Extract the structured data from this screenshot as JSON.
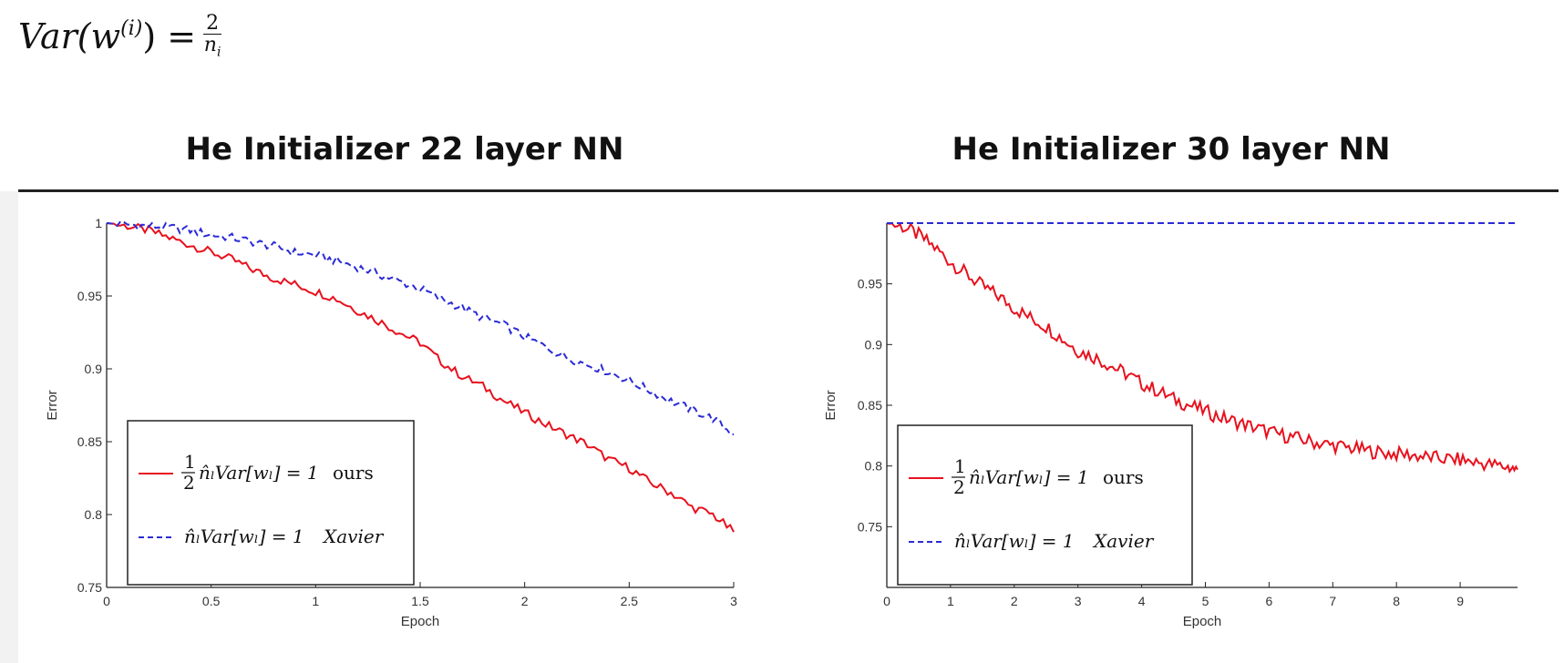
{
  "formula": {
    "lhs": "Var(w",
    "sup": "(i)",
    "close": ") =",
    "numerator": "2",
    "denominator": "n",
    "denominator_sub": "i"
  },
  "chart_data": [
    {
      "type": "line",
      "title": "He Initializer 22 layer NN",
      "xlabel": "Epoch",
      "ylabel": "Error",
      "xlim": [
        0,
        3
      ],
      "ylim": [
        0.75,
        1.0
      ],
      "xticks": [
        0,
        0.5,
        1,
        1.5,
        2,
        2.5,
        3
      ],
      "xtick_labels": [
        "0",
        "0.5",
        "1",
        "1.5",
        "2",
        "2.5",
        "3"
      ],
      "yticks": [
        0.75,
        0.8,
        0.85,
        0.9,
        0.95,
        1
      ],
      "ytick_labels": [
        "0.75",
        "0.8",
        "0.85",
        "0.9",
        "0.95",
        "1"
      ],
      "legend_position": "bottom-left",
      "series": [
        {
          "name": "ours",
          "legend_formula": "½ n̂ₗVar[wₗ] = 1",
          "color": "#e8111d",
          "dash": "solid",
          "x": [
            0,
            0.1,
            0.2,
            0.3,
            0.4,
            0.5,
            0.6,
            0.7,
            0.8,
            0.9,
            1.0,
            1.1,
            1.2,
            1.3,
            1.4,
            1.5,
            1.6,
            1.7,
            1.8,
            1.9,
            2.0,
            2.1,
            2.2,
            2.3,
            2.4,
            2.5,
            2.6,
            2.7,
            2.8,
            2.9,
            3.0
          ],
          "y": [
            1.0,
            0.998,
            0.995,
            0.99,
            0.985,
            0.98,
            0.975,
            0.968,
            0.962,
            0.958,
            0.953,
            0.948,
            0.94,
            0.933,
            0.925,
            0.918,
            0.905,
            0.895,
            0.888,
            0.878,
            0.87,
            0.862,
            0.855,
            0.848,
            0.838,
            0.832,
            0.822,
            0.815,
            0.805,
            0.8,
            0.788
          ]
        },
        {
          "name": "Xavier",
          "legend_formula": "n̂ₗVar[wₗ] = 1",
          "color": "#2b2bd6",
          "dash": "dashed",
          "x": [
            0,
            0.1,
            0.2,
            0.3,
            0.4,
            0.5,
            0.6,
            0.7,
            0.8,
            0.9,
            1.0,
            1.1,
            1.2,
            1.3,
            1.4,
            1.5,
            1.6,
            1.7,
            1.8,
            1.9,
            2.0,
            2.1,
            2.2,
            2.3,
            2.4,
            2.5,
            2.6,
            2.7,
            2.8,
            2.9,
            3.0
          ],
          "y": [
            1.0,
            0.999,
            0.998,
            0.997,
            0.995,
            0.992,
            0.99,
            0.987,
            0.984,
            0.98,
            0.978,
            0.974,
            0.97,
            0.965,
            0.96,
            0.955,
            0.948,
            0.942,
            0.935,
            0.93,
            0.922,
            0.915,
            0.908,
            0.903,
            0.898,
            0.892,
            0.885,
            0.878,
            0.872,
            0.866,
            0.855
          ]
        }
      ]
    },
    {
      "type": "line",
      "title": "He Initializer 30 layer NN",
      "xlabel": "Epoch",
      "ylabel": "Error",
      "xlim": [
        0,
        9.9
      ],
      "ylim": [
        0.7,
        1.0
      ],
      "xticks": [
        0,
        1,
        2,
        3,
        4,
        5,
        6,
        7,
        8,
        9
      ],
      "xtick_labels": [
        "0",
        "1",
        "2",
        "3",
        "4",
        "5",
        "6",
        "7",
        "8",
        "9"
      ],
      "yticks": [
        0.75,
        0.8,
        0.85,
        0.9,
        0.95
      ],
      "ytick_labels": [
        "0.75",
        "0.8",
        "0.85",
        "0.9",
        "0.95"
      ],
      "legend_position": "bottom-left",
      "series": [
        {
          "name": "ours",
          "legend_formula": "½ n̂ₗVar[wₗ] = 1",
          "color": "#e8111d",
          "dash": "solid",
          "x": [
            0,
            0.25,
            0.5,
            0.75,
            1.0,
            1.25,
            1.5,
            1.75,
            2.0,
            2.25,
            2.5,
            2.75,
            3.0,
            3.25,
            3.5,
            3.75,
            4.0,
            4.25,
            4.5,
            4.75,
            5.0,
            5.25,
            5.5,
            5.75,
            6.0,
            6.25,
            6.5,
            6.75,
            7.0,
            7.25,
            7.5,
            7.75,
            8.0,
            8.25,
            8.5,
            8.75,
            9.0,
            9.25,
            9.5,
            9.75,
            9.9
          ],
          "y": [
            1.0,
            0.997,
            0.99,
            0.98,
            0.968,
            0.958,
            0.948,
            0.94,
            0.93,
            0.922,
            0.915,
            0.905,
            0.895,
            0.89,
            0.883,
            0.876,
            0.868,
            0.862,
            0.855,
            0.85,
            0.845,
            0.84,
            0.836,
            0.832,
            0.828,
            0.825,
            0.822,
            0.819,
            0.817,
            0.815,
            0.813,
            0.811,
            0.81,
            0.809,
            0.807,
            0.806,
            0.805,
            0.803,
            0.801,
            0.799,
            0.797
          ]
        },
        {
          "name": "Xavier",
          "legend_formula": "n̂ₗVar[wₗ] = 1",
          "color": "#2b2bd6",
          "dash": "dashed",
          "x": [
            0,
            9.9
          ],
          "y": [
            1.0,
            1.0
          ]
        }
      ]
    }
  ]
}
